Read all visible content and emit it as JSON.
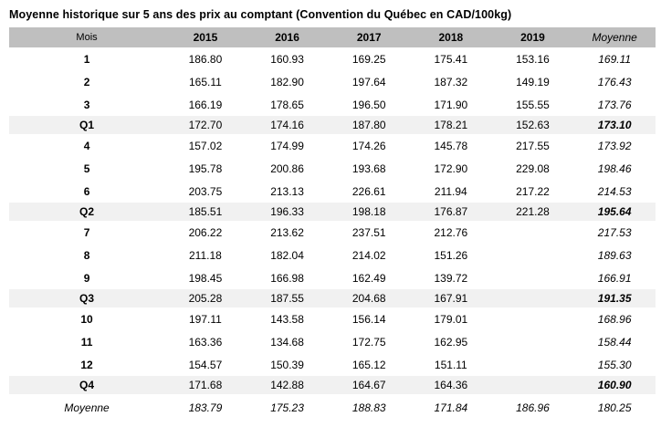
{
  "title": "Moyenne historique sur 5 ans des prix au comptant (Convention du Québec en CAD/100kg)",
  "table": {
    "columns": [
      "Mois",
      "2015",
      "2016",
      "2017",
      "2018",
      "2019",
      "Moyenne"
    ],
    "rows": [
      {
        "label": "1",
        "type": "month",
        "values": [
          "186.80",
          "160.93",
          "169.25",
          "175.41",
          "153.16",
          "169.11"
        ]
      },
      {
        "label": "2",
        "type": "month",
        "values": [
          "165.11",
          "182.90",
          "197.64",
          "187.32",
          "149.19",
          "176.43"
        ]
      },
      {
        "label": "3",
        "type": "month",
        "values": [
          "166.19",
          "178.65",
          "196.50",
          "171.90",
          "155.55",
          "173.76"
        ]
      },
      {
        "label": "Q1",
        "type": "quarter",
        "values": [
          "172.70",
          "174.16",
          "187.80",
          "178.21",
          "152.63",
          "173.10"
        ]
      },
      {
        "label": "4",
        "type": "month",
        "values": [
          "157.02",
          "174.99",
          "174.26",
          "145.78",
          "217.55",
          "173.92"
        ]
      },
      {
        "label": "5",
        "type": "month",
        "values": [
          "195.78",
          "200.86",
          "193.68",
          "172.90",
          "229.08",
          "198.46"
        ]
      },
      {
        "label": "6",
        "type": "month",
        "values": [
          "203.75",
          "213.13",
          "226.61",
          "211.94",
          "217.22",
          "214.53"
        ]
      },
      {
        "label": "Q2",
        "type": "quarter",
        "values": [
          "185.51",
          "196.33",
          "198.18",
          "176.87",
          "221.28",
          "195.64"
        ]
      },
      {
        "label": "7",
        "type": "month",
        "values": [
          "206.22",
          "213.62",
          "237.51",
          "212.76",
          "",
          "217.53"
        ]
      },
      {
        "label": "8",
        "type": "month",
        "values": [
          "211.18",
          "182.04",
          "214.02",
          "151.26",
          "",
          "189.63"
        ]
      },
      {
        "label": "9",
        "type": "month",
        "values": [
          "198.45",
          "166.98",
          "162.49",
          "139.72",
          "",
          "166.91"
        ]
      },
      {
        "label": "Q3",
        "type": "quarter",
        "values": [
          "205.28",
          "187.55",
          "204.68",
          "167.91",
          "",
          "191.35"
        ]
      },
      {
        "label": "10",
        "type": "month",
        "values": [
          "197.11",
          "143.58",
          "156.14",
          "179.01",
          "",
          "168.96"
        ]
      },
      {
        "label": "11",
        "type": "month",
        "values": [
          "163.36",
          "134.68",
          "172.75",
          "162.95",
          "",
          "158.44"
        ]
      },
      {
        "label": "12",
        "type": "month",
        "values": [
          "154.57",
          "150.39",
          "165.12",
          "151.11",
          "",
          "155.30"
        ]
      },
      {
        "label": "Q4",
        "type": "quarter",
        "values": [
          "171.68",
          "142.88",
          "164.67",
          "164.36",
          "",
          "160.90"
        ]
      },
      {
        "label": "Moyenne",
        "type": "total",
        "values": [
          "183.79",
          "175.23",
          "188.83",
          "171.84",
          "186.96",
          "180.25"
        ]
      }
    ]
  },
  "colors": {
    "header_background": "#bfbfbf",
    "quarter_row_background": "#f1f1f1",
    "text": "#000000",
    "page_background": "#ffffff"
  }
}
